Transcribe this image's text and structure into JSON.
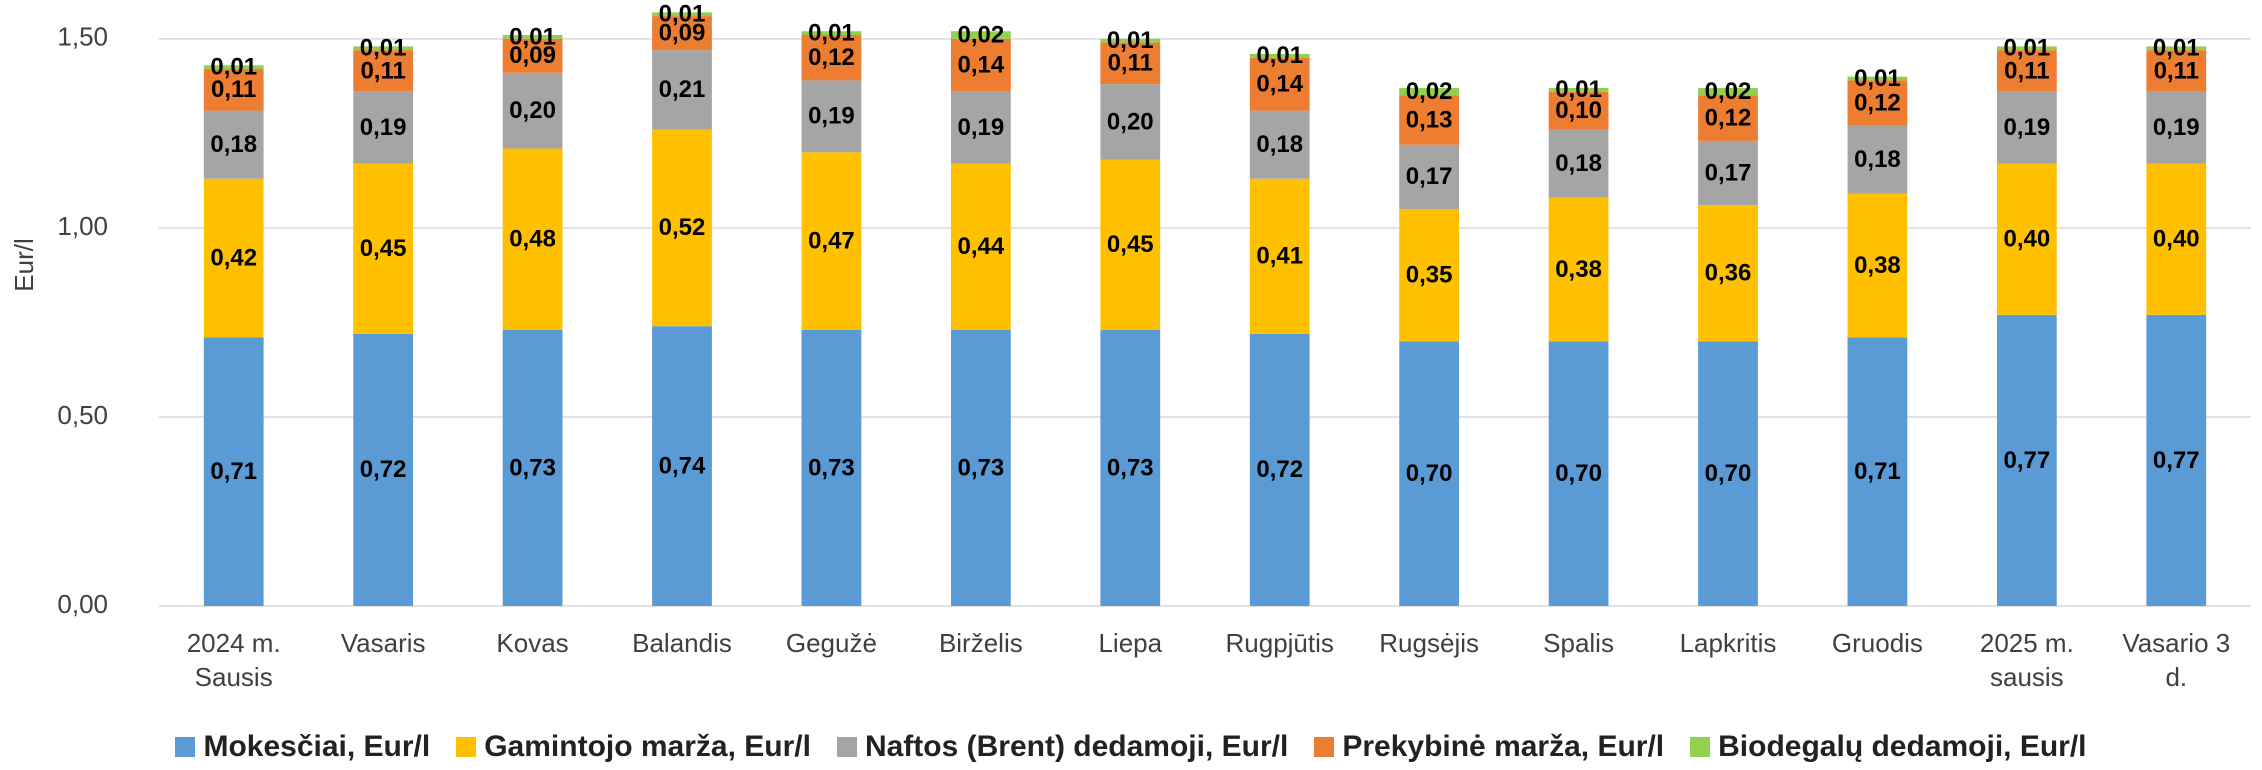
{
  "chart_data": {
    "type": "stacked_bar",
    "y_label": "Eur/l",
    "categories": [
      "2024 m. Sausis",
      "Vasaris",
      "Kovas",
      "Balandis",
      "Gegužė",
      "Birželis",
      "Liepa",
      "Rugpjūtis",
      "Rugsėjis",
      "Spalis",
      "Lapkritis",
      "Gruodis",
      "2025 m. sausis",
      "Vasario 3 d."
    ],
    "series": [
      {
        "name": "Mokesčiai, Eur/l",
        "color": "#5b9bd5",
        "values": [
          0.71,
          0.72,
          0.73,
          0.74,
          0.73,
          0.73,
          0.73,
          0.72,
          0.7,
          0.7,
          0.7,
          0.71,
          0.77,
          0.77
        ],
        "value_labels": [
          "0,71",
          "0,72",
          "0,73",
          "0,74",
          "0,73",
          "0,73",
          "0,73",
          "0,72",
          "0,70",
          "0,70",
          "0,70",
          "0,71",
          "0,77",
          "0,77"
        ]
      },
      {
        "name": "Gamintojo marža, Eur/l",
        "color": "#ffc000",
        "values": [
          0.42,
          0.45,
          0.48,
          0.52,
          0.47,
          0.44,
          0.45,
          0.41,
          0.35,
          0.38,
          0.36,
          0.38,
          0.4,
          0.4
        ],
        "value_labels": [
          "0,42",
          "0,45",
          "0,48",
          "0,52",
          "0,47",
          "0,44",
          "0,45",
          "0,41",
          "0,35",
          "0,38",
          "0,36",
          "0,38",
          "0,40",
          "0,40"
        ]
      },
      {
        "name": "Naftos (Brent) dedamoji, Eur/l",
        "color": "#a5a5a5",
        "values": [
          0.18,
          0.19,
          0.2,
          0.21,
          0.19,
          0.19,
          0.2,
          0.18,
          0.17,
          0.18,
          0.17,
          0.18,
          0.19,
          0.19
        ],
        "value_labels": [
          "0,18",
          "0,19",
          "0,20",
          "0,21",
          "0,19",
          "0,19",
          "0,20",
          "0,18",
          "0,17",
          "0,18",
          "0,17",
          "0,18",
          "0,19",
          "0,19"
        ]
      },
      {
        "name": "Prekybinė marža, Eur/l",
        "color": "#ed7d31",
        "values": [
          0.11,
          0.11,
          0.09,
          0.09,
          0.12,
          0.14,
          0.11,
          0.14,
          0.13,
          0.1,
          0.12,
          0.12,
          0.11,
          0.11
        ],
        "value_labels": [
          "0,11",
          "0,11",
          "0,09",
          "0,09",
          "0,12",
          "0,14",
          "0,11",
          "0,14",
          "0,13",
          "0,10",
          "0,12",
          "0,12",
          "0,11",
          "0,11"
        ]
      },
      {
        "name": "Biodegalų dedamoji, Eur/l",
        "color": "#92d050",
        "values": [
          0.01,
          0.01,
          0.01,
          0.01,
          0.01,
          0.02,
          0.01,
          0.01,
          0.02,
          0.01,
          0.02,
          0.01,
          0.01,
          0.01
        ],
        "value_labels": [
          "0,01",
          "0,01",
          "0,01",
          "0,01",
          "0,01",
          "0,02",
          "0,01",
          "0,01",
          "0,02",
          "0,01",
          "0,02",
          "0,01",
          "0,01",
          "0,01"
        ]
      }
    ],
    "ylim": [
      0,
      1.6
    ],
    "yticks": [
      {
        "value": 0,
        "label": "0,00"
      },
      {
        "value": 0.5,
        "label": "0,50"
      },
      {
        "value": 1,
        "label": "1,00"
      },
      {
        "value": 1.5,
        "label": "1,50"
      }
    ],
    "grid": true,
    "legend": "bottom"
  }
}
